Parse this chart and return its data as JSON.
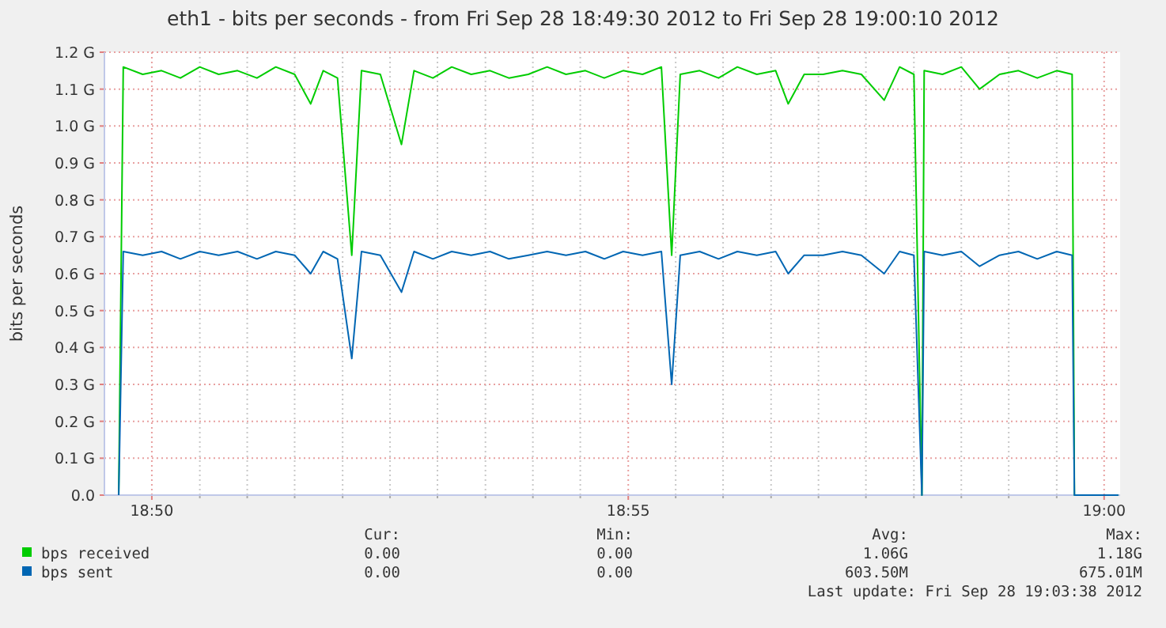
{
  "chart_data": {
    "type": "line",
    "title": "eth1 - bits per seconds - from Fri Sep 28 18:49:30 2012 to Fri Sep 28 19:00:10 2012",
    "ylabel": "bits per seconds",
    "x": [
      18.8275,
      18.8283,
      18.8317,
      18.835,
      18.8383,
      18.8417,
      18.845,
      18.8483,
      18.8517,
      18.855,
      18.8583,
      18.8611,
      18.8633,
      18.8658,
      18.8683,
      18.87,
      18.8733,
      18.877,
      18.8792,
      18.8825,
      18.8858,
      18.8892,
      18.8925,
      18.8958,
      18.8992,
      18.9025,
      18.9058,
      18.9092,
      18.9125,
      18.9158,
      18.9192,
      18.9225,
      18.9243,
      18.9258,
      18.9292,
      18.9325,
      18.9358,
      18.9392,
      18.9425,
      18.9447,
      18.9475,
      18.9508,
      18.9542,
      18.9575,
      18.9615,
      18.9642,
      18.9667,
      18.9681,
      18.9685,
      18.9717,
      18.975,
      18.9782,
      18.9817,
      18.985,
      18.9883,
      18.9917,
      18.9944,
      18.9948,
      19.0025
    ],
    "series": [
      {
        "name": "bps received",
        "color": "#00cc00",
        "values": [
          0,
          1.16,
          1.14,
          1.15,
          1.13,
          1.16,
          1.14,
          1.15,
          1.13,
          1.16,
          1.14,
          1.06,
          1.15,
          1.13,
          0.65,
          1.15,
          1.14,
          0.95,
          1.15,
          1.13,
          1.16,
          1.14,
          1.15,
          1.13,
          1.14,
          1.16,
          1.14,
          1.15,
          1.13,
          1.15,
          1.14,
          1.16,
          0.65,
          1.14,
          1.15,
          1.13,
          1.16,
          1.14,
          1.15,
          1.06,
          1.14,
          1.14,
          1.15,
          1.14,
          1.07,
          1.16,
          1.14,
          0,
          1.15,
          1.14,
          1.16,
          1.1,
          1.14,
          1.15,
          1.13,
          1.15,
          1.14,
          0,
          0
        ]
      },
      {
        "name": "bps sent",
        "color": "#0066b3",
        "values": [
          0,
          0.66,
          0.65,
          0.66,
          0.64,
          0.66,
          0.65,
          0.66,
          0.64,
          0.66,
          0.65,
          0.6,
          0.66,
          0.64,
          0.37,
          0.66,
          0.65,
          0.55,
          0.66,
          0.64,
          0.66,
          0.65,
          0.66,
          0.64,
          0.65,
          0.66,
          0.65,
          0.66,
          0.64,
          0.66,
          0.65,
          0.66,
          0.3,
          0.65,
          0.66,
          0.64,
          0.66,
          0.65,
          0.66,
          0.6,
          0.65,
          0.65,
          0.66,
          0.65,
          0.6,
          0.66,
          0.65,
          0,
          0.66,
          0.65,
          0.66,
          0.62,
          0.65,
          0.66,
          0.64,
          0.66,
          0.65,
          0,
          0
        ]
      }
    ],
    "xlim": [
      18.825,
      19.0028
    ],
    "xticks": [
      {
        "value": 18.8333,
        "label": "18:50"
      },
      {
        "value": 18.8417,
        "label": null
      },
      {
        "value": 18.85,
        "label": null
      },
      {
        "value": 18.8583,
        "label": null
      },
      {
        "value": 18.8667,
        "label": null
      },
      {
        "value": 18.875,
        "label": null
      },
      {
        "value": 18.8833,
        "label": null
      },
      {
        "value": 18.8917,
        "label": null
      },
      {
        "value": 18.9,
        "label": null
      },
      {
        "value": 18.9083,
        "label": null
      },
      {
        "value": 18.9167,
        "label": "18:55"
      },
      {
        "value": 18.925,
        "label": null
      },
      {
        "value": 18.9333,
        "label": null
      },
      {
        "value": 18.9417,
        "label": null
      },
      {
        "value": 18.95,
        "label": null
      },
      {
        "value": 18.9583,
        "label": null
      },
      {
        "value": 18.9667,
        "label": null
      },
      {
        "value": 18.975,
        "label": null
      },
      {
        "value": 18.9833,
        "label": null
      },
      {
        "value": 18.9917,
        "label": null
      },
      {
        "value": 19,
        "label": "19:00"
      }
    ],
    "ylim": [
      0,
      1.2
    ],
    "yticks": [
      {
        "value": 0,
        "label": "0.0"
      },
      {
        "value": 0.1,
        "label": "0.1 G"
      },
      {
        "value": 0.2,
        "label": "0.2 G"
      },
      {
        "value": 0.3,
        "label": "0.3 G"
      },
      {
        "value": 0.4,
        "label": "0.4 G"
      },
      {
        "value": 0.5,
        "label": "0.5 G"
      },
      {
        "value": 0.6,
        "label": "0.6 G"
      },
      {
        "value": 0.7,
        "label": "0.7 G"
      },
      {
        "value": 0.8,
        "label": "0.8 G"
      },
      {
        "value": 0.9,
        "label": "0.9 G"
      },
      {
        "value": 1,
        "label": "1.0 G"
      },
      {
        "value": 1.1,
        "label": "1.1 G"
      },
      {
        "value": 1.2,
        "label": "1.2 G"
      }
    ],
    "grid": true,
    "legend": "bottom left",
    "marker": "none",
    "line_style": "solid",
    "annotations": [
      "Cur:",
      "Min:",
      "Avg:",
      "Max:",
      "0.00",
      "0.00",
      "1.06G",
      "1.18G",
      "0.00",
      "0.00",
      "603.50M",
      "675.01M",
      "Last update: Fri Sep 28 19:03:38 2012"
    ]
  }
}
